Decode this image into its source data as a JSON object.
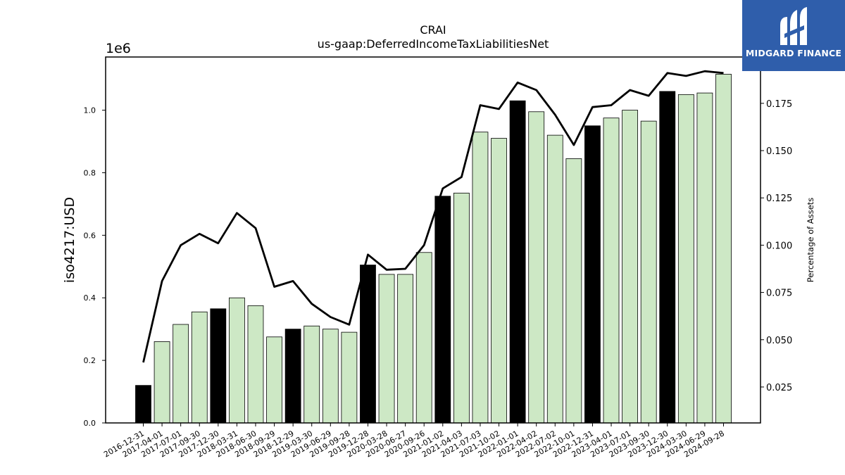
{
  "logo": {
    "text": "MIDGARD FINANCE",
    "icon": "midgard-m-logo-icon",
    "background": "#2f5eab"
  },
  "colors": {
    "bar_annual": "#000000",
    "bar_quarterly": "#cde8c5",
    "line": "#000000"
  },
  "chart_data": {
    "type": "bar",
    "title": "CRAI",
    "subtitle": "us-gaap:DeferredIncomeTaxLiabilitiesNet",
    "ylabel": "iso4217:USD",
    "ylabel_right": "Percentage of Assets",
    "offset_label": "1e6",
    "ylim": [
      0,
      1.17
    ],
    "ylim_right": [
      0.006,
      0.1995
    ],
    "yticks": [
      "0.0",
      "0.2",
      "0.4",
      "0.6",
      "0.8",
      "1.0"
    ],
    "yticks_right": [
      "0.025",
      "0.050",
      "0.075",
      "0.100",
      "0.125",
      "0.150",
      "0.175"
    ],
    "categories": [
      "2016-12-31",
      "2017-04-01",
      "2017-07-01",
      "2017-09-30",
      "2017-12-30",
      "2018-03-31",
      "2018-06-30",
      "2018-09-29",
      "2018-12-29",
      "2019-03-30",
      "2019-06-29",
      "2019-09-28",
      "2019-12-28",
      "2020-03-28",
      "2020-06-27",
      "2020-09-26",
      "2021-01-02",
      "2021-04-03",
      "2021-07-03",
      "2021-10-02",
      "2022-01-01",
      "2022-04-02",
      "2022-07-02",
      "2022-10-01",
      "2022-12-31",
      "2023-04-01",
      "2023-07-01",
      "2023-09-30",
      "2023-12-30",
      "2024-03-30",
      "2024-06-29",
      "2024-09-28"
    ],
    "series": [
      {
        "values": [
          0.12,
          0.26,
          0.315,
          0.355,
          0.365,
          0.4,
          0.375,
          0.275,
          0.3,
          0.31,
          0.3,
          0.29,
          0.505,
          0.475,
          0.475,
          0.545,
          0.725,
          0.735,
          0.93,
          0.91,
          1.03,
          0.995,
          0.92,
          0.845,
          0.95,
          0.975,
          1.0,
          0.965,
          1.06,
          1.05,
          1.055,
          1.115
        ],
        "annual": [
          true,
          false,
          false,
          false,
          true,
          false,
          false,
          false,
          true,
          false,
          false,
          false,
          true,
          false,
          false,
          false,
          true,
          false,
          false,
          false,
          true,
          false,
          false,
          false,
          true,
          false,
          false,
          false,
          true,
          false,
          false,
          false
        ]
      },
      {
        "axis": "right",
        "values": [
          0.038,
          0.081,
          0.1,
          0.106,
          0.101,
          0.117,
          0.109,
          0.078,
          0.081,
          0.069,
          0.062,
          0.058,
          0.095,
          0.087,
          0.0875,
          0.1,
          0.13,
          0.136,
          0.174,
          0.172,
          0.186,
          0.182,
          0.169,
          0.153,
          0.173,
          0.174,
          0.182,
          0.179,
          0.191,
          0.1895,
          0.192,
          0.191
        ]
      }
    ]
  }
}
